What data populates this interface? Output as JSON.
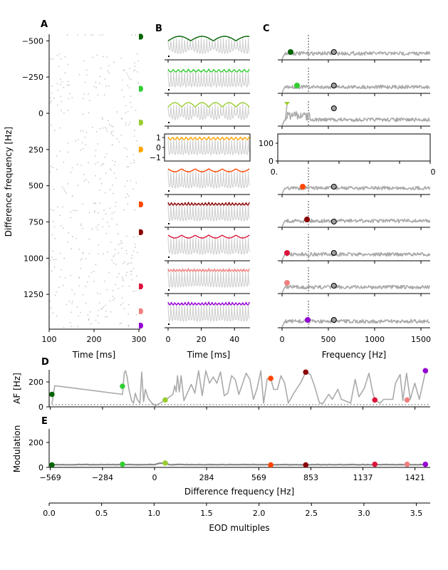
{
  "colors": [
    "#006400",
    "#32cd32",
    "#9acd32",
    "#ffa500",
    "#ff4500",
    "#8b0000",
    "#dc143c",
    "#f08080",
    "#9400d3"
  ],
  "chart_data": [
    {
      "panel": "A",
      "type": "scatter",
      "xlabel": "Time [ms]",
      "ylabel": "Difference frequency [Hz]",
      "xlim": [
        100,
        300
      ],
      "ylim": [
        -550,
        1490
      ],
      "y_inverted": true,
      "xticks": [
        "100",
        "200",
        "300"
      ],
      "yticks": [
        -500,
        -250,
        0,
        250,
        500,
        750,
        1000,
        1250
      ],
      "ytick_labels": [
        "−500",
        "−250",
        "0",
        "250",
        "500",
        "750",
        "1000",
        "1250"
      ],
      "markers_df": [
        -529,
        -169,
        64,
        250,
        629,
        821,
        1195,
        1367,
        1466
      ]
    },
    {
      "panel": "B",
      "type": "line",
      "xlabel": "Time [ms]",
      "xlim": [
        0,
        50
      ],
      "xticks": [
        "0",
        "20",
        "40"
      ],
      "inset_yticks": [
        "1",
        "0",
        "−1"
      ]
    },
    {
      "panel": "C",
      "type": "line",
      "xlabel": "Frequency [Hz]",
      "xlim": [
        0,
        1600
      ],
      "xticks": [
        "0",
        "500",
        "1000",
        "1500"
      ],
      "dashed_line_hz": 285,
      "eod_peak_hz": 560,
      "peak_hz": [
        92,
        162,
        54,
        null,
        223,
        270,
        54,
        54,
        277
      ],
      "empty_axis": {
        "yticks": [
          "100",
          "0"
        ],
        "xticks": [
          "0.",
          "0"
        ]
      }
    },
    {
      "panel": "D",
      "type": "line",
      "ylabel": "AF [Hz]",
      "ylim": [
        0,
        300
      ],
      "yticks": [
        "0",
        "200"
      ],
      "threshold": 18,
      "series": [
        {
          "x": [
            -560,
            -545,
            -175,
            -165,
            -158,
            -150,
            -140,
            -125,
            -115,
            -105,
            -95,
            -80,
            -70,
            -60,
            -50,
            -35,
            -15,
            5,
            30,
            60,
            100,
            110,
            118,
            125,
            135,
            145,
            160,
            200,
            220,
            240,
            260,
            280,
            300,
            320,
            340,
            360,
            380,
            400,
            420,
            440,
            460,
            500,
            520,
            540,
            560,
            580,
            595,
            615,
            634,
            650,
            670,
            690,
            710,
            730,
            760,
            800,
            825,
            850,
            870,
            900,
            920,
            950,
            970,
            1000,
            1020,
            1070,
            1095,
            1115,
            1145,
            1170,
            1190,
            1202,
            1230,
            1250,
            1300,
            1315,
            1340,
            1355,
            1375,
            1395,
            1420,
            1445,
            1478,
            1490
          ],
          "y": [
            20,
            170,
            100,
            275,
            290,
            240,
            140,
            50,
            30,
            110,
            60,
            30,
            280,
            40,
            140,
            70,
            30,
            10,
            30,
            55,
            100,
            170,
            120,
            250,
            120,
            250,
            50,
            180,
            110,
            290,
            90,
            290,
            190,
            240,
            190,
            280,
            90,
            110,
            250,
            220,
            100,
            270,
            220,
            60,
            150,
            290,
            30,
            225,
            230,
            140,
            140,
            250,
            190,
            30,
            110,
            200,
            280,
            260,
            180,
            30,
            30,
            100,
            60,
            140,
            60,
            30,
            220,
            80,
            150,
            270,
            120,
            55,
            30,
            60,
            60,
            190,
            260,
            50,
            270,
            60,
            190,
            60,
            280,
            270
          ]
        }
      ],
      "points": {
        "x": [
          -560,
          -175,
          58,
          634,
          825,
          1202,
          1378,
          1478
        ],
        "y": [
          100,
          165,
          55,
          228,
          278,
          55,
          55,
          290
        ],
        "color_index": [
          0,
          1,
          2,
          4,
          5,
          6,
          7,
          8
        ]
      }
    },
    {
      "panel": "E",
      "type": "line",
      "ylabel": "Modulation",
      "xlabel": "Difference frequency [Hz]",
      "xlim": [
        -600,
        1500
      ],
      "ylim": [
        0,
        300
      ],
      "yticks": [
        "0",
        "200"
      ],
      "xticks": [
        -569,
        -284,
        0,
        284,
        569,
        853,
        1137,
        1421
      ],
      "xtick_labels": [
        "−569",
        "−284",
        "0",
        "284",
        "569",
        "853",
        "1137",
        "1421"
      ],
      "points": {
        "x": [
          -560,
          -175,
          58,
          634,
          825,
          1202,
          1378,
          1478
        ],
        "y": [
          20,
          25,
          35,
          20,
          20,
          25,
          25,
          25
        ],
        "color_index": [
          0,
          1,
          2,
          4,
          5,
          6,
          7,
          8
        ]
      }
    },
    {
      "panel": "EOD",
      "type": "axis",
      "xlabel": "EOD multiples",
      "xlim": [
        0,
        3.63
      ],
      "xticks": [
        "0.0",
        "0.5",
        "1.0",
        "1.5",
        "2.0",
        "2.5",
        "3.0",
        "3.5"
      ]
    }
  ],
  "labels": {
    "A": "A",
    "B": "B",
    "C": "C",
    "D": "D",
    "E": "E"
  }
}
